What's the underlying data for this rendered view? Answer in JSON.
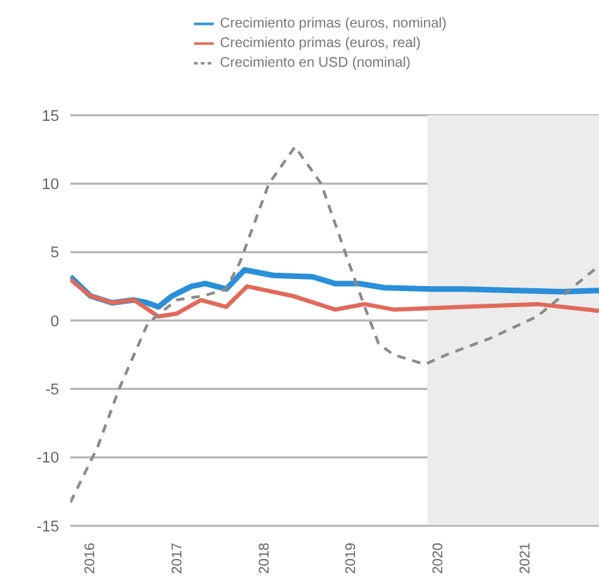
{
  "chart_data": {
    "type": "line",
    "legend": "top",
    "grid": "y",
    "line_style": "solid",
    "marker": "none",
    "xlim": [
      2015.77,
      2021.84
    ],
    "xticks": [
      2016,
      2017,
      2018,
      2019,
      2020,
      2021
    ],
    "ylim": [
      -15,
      15
    ],
    "yticks": [
      -15,
      -10,
      -5,
      0,
      5,
      10,
      15
    ],
    "bands": [
      {
        "axis": "x",
        "from": 2019.87,
        "to": 2021.84,
        "color": "#ececec"
      }
    ],
    "series": [
      {
        "name": "Crecimiento primas (euros, nominal)",
        "color": "#2a8fd8",
        "x": [
          2015.77,
          2016.0,
          2016.25,
          2016.5,
          2016.65,
          2016.78,
          2016.94,
          2017.16,
          2017.32,
          2017.56,
          2017.77,
          2018.1,
          2018.55,
          2018.81,
          2019.09,
          2019.37,
          2019.92,
          2020.3,
          2020.87,
          2021.41,
          2021.84
        ],
        "values": [
          3.2,
          1.8,
          1.3,
          1.5,
          1.3,
          1.0,
          1.8,
          2.5,
          2.7,
          2.3,
          3.7,
          3.3,
          3.2,
          2.7,
          2.7,
          2.4,
          2.3,
          2.3,
          2.2,
          2.1,
          2.2
        ]
      },
      {
        "name": "Crecimiento primas (euros, real)",
        "color": "#e06a5a",
        "x": [
          2015.77,
          2016.0,
          2016.25,
          2016.5,
          2016.78,
          2016.99,
          2017.27,
          2017.56,
          2017.8,
          2018.32,
          2018.81,
          2019.15,
          2019.48,
          2020.3,
          2021.13,
          2021.84
        ],
        "values": [
          3.0,
          1.8,
          1.3,
          1.5,
          0.3,
          0.5,
          1.5,
          1.0,
          2.5,
          1.8,
          0.8,
          1.2,
          0.8,
          1.0,
          1.2,
          0.7
        ]
      },
      {
        "name": "Crecimiento en USD (nominal)",
        "color": "#8a8a8a",
        "line_style": "dashed",
        "x": [
          2015.77,
          2016.08,
          2016.33,
          2016.66,
          2016.99,
          2017.3,
          2017.56,
          2017.72,
          2018.05,
          2018.35,
          2018.65,
          2018.98,
          2019.15,
          2019.31,
          2019.48,
          2019.84,
          2020.09,
          2020.59,
          2021.13,
          2021.84
        ],
        "values": [
          -13.3,
          -9.3,
          -5.0,
          -0.2,
          1.5,
          1.8,
          2.3,
          4.3,
          10.0,
          12.7,
          10.0,
          4.0,
          1.0,
          -1.7,
          -2.5,
          -3.2,
          -2.5,
          -1.3,
          0.3,
          4.0
        ]
      }
    ]
  }
}
